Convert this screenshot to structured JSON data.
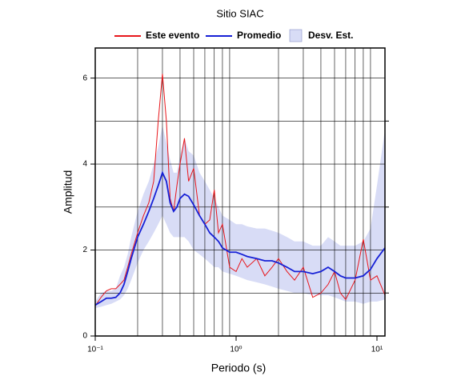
{
  "chart_data": {
    "type": "line",
    "title": "Sitio SIAC",
    "xlabel": "Periodo (s)",
    "ylabel": "Amplitud",
    "xscale": "log",
    "grid": true,
    "xlim": [
      0.1,
      11.4
    ],
    "ylim": [
      0,
      6.7
    ],
    "xticks": [
      {
        "value": 0.1,
        "label": "10⁻¹"
      },
      {
        "value": 1,
        "label": "10⁰"
      },
      {
        "value": 10,
        "label": "10¹"
      }
    ],
    "xminor": [
      0.2,
      0.3,
      0.4,
      0.5,
      0.6,
      0.7,
      0.8,
      0.9,
      2,
      3,
      4,
      5,
      6,
      7,
      8,
      9
    ],
    "yticks": [
      0,
      2,
      4,
      6
    ],
    "yminor": [
      1,
      3,
      5
    ],
    "x": [
      0.1,
      0.11,
      0.12,
      0.13,
      0.14,
      0.15,
      0.16,
      0.17,
      0.18,
      0.2,
      0.22,
      0.24,
      0.26,
      0.28,
      0.3,
      0.32,
      0.34,
      0.36,
      0.38,
      0.4,
      0.43,
      0.46,
      0.5,
      0.55,
      0.6,
      0.65,
      0.7,
      0.75,
      0.8,
      0.9,
      1.0,
      1.1,
      1.2,
      1.4,
      1.6,
      1.8,
      2.0,
      2.3,
      2.6,
      3.0,
      3.5,
      4,
      4.5,
      5,
      5.5,
      6,
      7,
      8,
      9,
      10,
      11.4
    ],
    "band": {
      "name": "Desv. Est.",
      "color": "#d8dcf6",
      "lower": [
        0.65,
        0.68,
        0.72,
        0.75,
        0.8,
        0.85,
        0.95,
        1.1,
        1.3,
        1.7,
        2.0,
        2.2,
        2.4,
        2.6,
        2.8,
        2.6,
        2.4,
        2.3,
        2.3,
        2.3,
        2.3,
        2.2,
        2.0,
        1.9,
        1.8,
        1.7,
        1.6,
        1.6,
        1.5,
        1.45,
        1.4,
        1.35,
        1.3,
        1.25,
        1.2,
        1.15,
        1.1,
        1.05,
        1.0,
        1.0,
        0.95,
        0.95,
        0.95,
        0.9,
        0.85,
        0.8,
        0.8,
        0.75,
        0.8,
        0.8,
        0.85
      ],
      "upper": [
        0.8,
        1.0,
        1.05,
        1.05,
        1.1,
        1.4,
        1.6,
        1.9,
        2.3,
        2.9,
        3.3,
        3.6,
        4.0,
        4.4,
        4.9,
        4.5,
        4.1,
        3.8,
        3.8,
        4.2,
        4.6,
        4.3,
        4.2,
        3.8,
        3.6,
        3.4,
        3.2,
        3.0,
        2.8,
        2.7,
        2.6,
        2.6,
        2.55,
        2.5,
        2.5,
        2.45,
        2.4,
        2.3,
        2.2,
        2.2,
        2.1,
        2.1,
        2.3,
        2.2,
        2.1,
        2.1,
        2.1,
        2.2,
        2.5,
        3.5,
        4.8
      ]
    },
    "series": [
      {
        "name": "Este evento",
        "color": "#e8161b",
        "values": [
          0.7,
          0.9,
          1.05,
          1.1,
          1.1,
          1.2,
          1.3,
          1.6,
          1.9,
          2.4,
          2.8,
          3.1,
          3.6,
          5.0,
          6.1,
          5.0,
          3.2,
          2.9,
          3.5,
          4.0,
          4.6,
          3.6,
          3.9,
          2.8,
          2.6,
          2.7,
          3.4,
          2.4,
          2.6,
          1.6,
          1.5,
          1.8,
          1.6,
          1.8,
          1.4,
          1.6,
          1.8,
          1.5,
          1.3,
          1.6,
          0.9,
          1.0,
          1.2,
          1.5,
          1.0,
          0.85,
          1.3,
          2.25,
          1.3,
          1.4,
          0.95
        ]
      },
      {
        "name": "Promedio",
        "color": "#1620d6",
        "values": [
          0.72,
          0.8,
          0.88,
          0.88,
          0.9,
          1.0,
          1.2,
          1.5,
          1.8,
          2.3,
          2.6,
          2.9,
          3.2,
          3.5,
          3.8,
          3.6,
          3.1,
          2.9,
          3.0,
          3.2,
          3.3,
          3.25,
          3.05,
          2.8,
          2.6,
          2.4,
          2.3,
          2.2,
          2.05,
          1.95,
          1.95,
          1.9,
          1.85,
          1.8,
          1.75,
          1.75,
          1.7,
          1.6,
          1.5,
          1.5,
          1.45,
          1.5,
          1.6,
          1.5,
          1.4,
          1.35,
          1.35,
          1.4,
          1.55,
          1.8,
          2.05
        ]
      }
    ]
  }
}
